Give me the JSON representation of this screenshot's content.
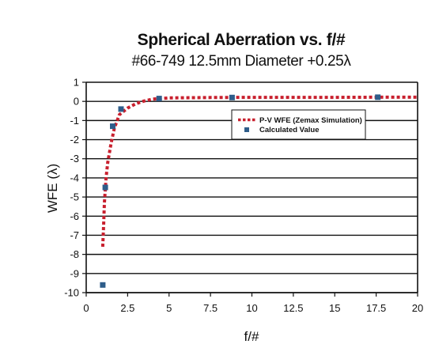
{
  "chart_data": {
    "type": "line",
    "title": "Spherical Aberration vs. f/#",
    "subtitle": "#66-749 12.5mm Diameter +0.25λ",
    "xlabel": "f/#",
    "ylabel": "WFE (λ)",
    "xlim": [
      0,
      20
    ],
    "ylim": [
      -10,
      1
    ],
    "x_ticks": [
      0,
      2.5,
      5,
      7.5,
      10,
      12.5,
      15,
      17.5,
      20
    ],
    "x_tick_labels": [
      "0",
      "2.5",
      "5",
      "7.5",
      "10",
      "12.5",
      "15",
      "17.5",
      "20"
    ],
    "y_ticks": [
      1,
      0,
      -1,
      -2,
      -3,
      -4,
      -5,
      -6,
      -7,
      -8,
      -9,
      -10
    ],
    "y_tick_labels": [
      "1",
      "0",
      "-1",
      "-2",
      "-3",
      "-4",
      "-5",
      "-6",
      "-7",
      "-8",
      "-9",
      "-10"
    ],
    "grid": {
      "horizontal": true,
      "vertical": false
    },
    "legend_position": "upper-right",
    "series": [
      {
        "name": "P-V WFE (Zemax Simulation)",
        "style": "dashed-line",
        "color": "#c8202e",
        "x": [
          1.0,
          1.05,
          1.1,
          1.2,
          1.3,
          1.5,
          1.7,
          2.0,
          2.5,
          3.0,
          3.5,
          4.0,
          5.0,
          7.5,
          10.0,
          12.5,
          15.0,
          17.5,
          20.0
        ],
        "y": [
          -7.6,
          -6.5,
          -5.3,
          -4.0,
          -3.2,
          -2.2,
          -1.4,
          -0.7,
          -0.35,
          -0.12,
          0.02,
          0.12,
          0.18,
          0.2,
          0.21,
          0.21,
          0.21,
          0.22,
          0.22
        ]
      },
      {
        "name": "Calculated Value",
        "style": "square-markers",
        "color": "#2e5d8a",
        "x": [
          1.0,
          1.15,
          1.6,
          2.1,
          4.4,
          8.8,
          17.6
        ],
        "y": [
          -9.6,
          -4.5,
          -1.3,
          -0.4,
          0.15,
          0.2,
          0.22
        ]
      }
    ]
  }
}
